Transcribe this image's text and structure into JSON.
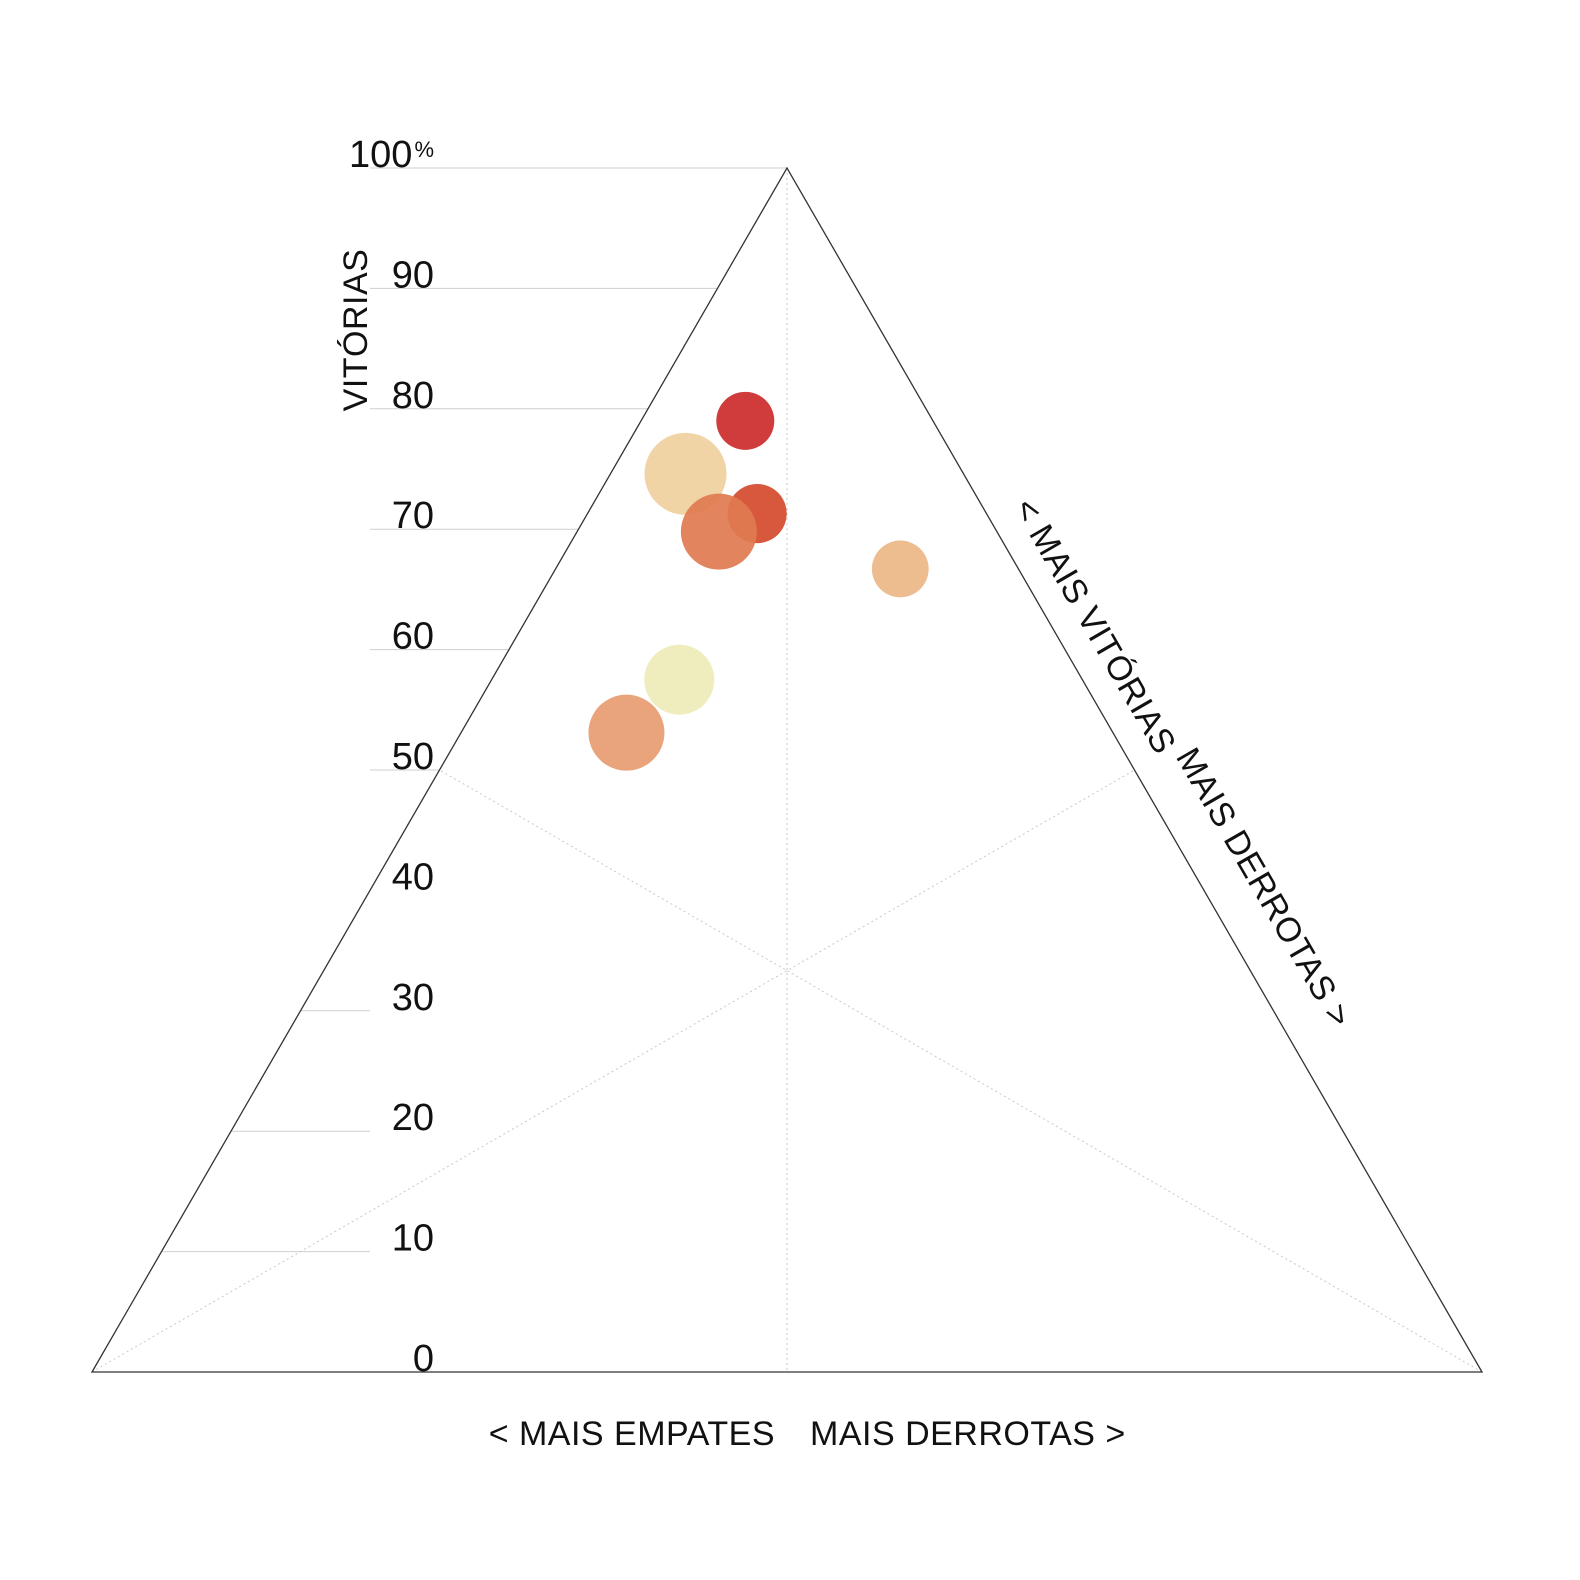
{
  "chart_data": {
    "type": "scatter",
    "subtype": "ternary-bubble",
    "y_axis": {
      "title": "VITÓRIAS",
      "range": [
        0,
        100
      ],
      "unit_suffix": "%",
      "ticks": [
        "0",
        "10",
        "20",
        "30",
        "40",
        "50",
        "60",
        "70",
        "80",
        "90",
        "100"
      ]
    },
    "bottom_axis": {
      "left_label": "< MAIS EMPATES",
      "right_label": "MAIS DERROTAS >"
    },
    "right_axis": {
      "left_label": "< MAIS VITÓRIAS",
      "right_label": "MAIS DERROTAS >"
    },
    "grid": "dotted medians",
    "points": [
      {
        "wins": 79,
        "draws": 13.5,
        "losses": 7.5,
        "size": 0.5,
        "color": "#cc2a2a"
      },
      {
        "wins": 74.6,
        "draws": 20,
        "losses": 5.4,
        "size": 0.9,
        "color": "#efd09e"
      },
      {
        "wins": 71.3,
        "draws": 16.5,
        "losses": 12.2,
        "size": 0.52,
        "color": "#d44a2c"
      },
      {
        "wins": 69.8,
        "draws": 20,
        "losses": 10.2,
        "size": 0.8,
        "color": "#e07a50"
      },
      {
        "wins": 66.7,
        "draws": 8.5,
        "losses": 24.8,
        "size": 0.48,
        "color": "#ecb686"
      },
      {
        "wins": 57.5,
        "draws": 29,
        "losses": 13.5,
        "size": 0.7,
        "color": "#eeebb8"
      },
      {
        "wins": 53.1,
        "draws": 35,
        "losses": 11.9,
        "size": 0.8,
        "color": "#e79c70"
      }
    ]
  }
}
